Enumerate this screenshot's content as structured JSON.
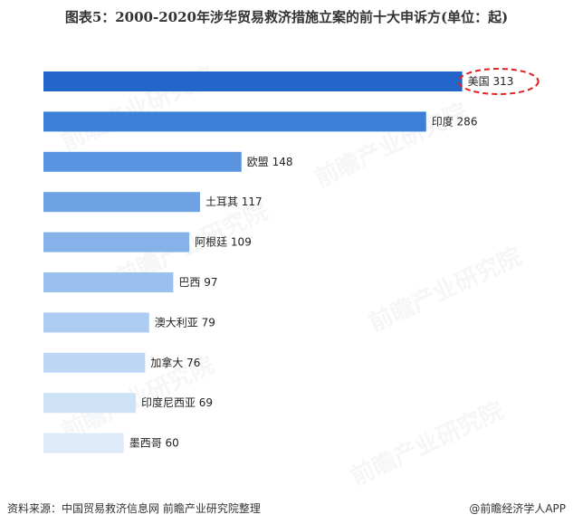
{
  "title": "图表5：2000-2020年涉华贸易救济措施立案的前十大申诉方(单位：起)",
  "chart_data": {
    "type": "bar",
    "orientation": "horizontal",
    "title": "图表5：2000-2020年涉华贸易救济措施立案的前十大申诉方(单位：起)",
    "categories": [
      "美国",
      "印度",
      "欧盟",
      "土耳其",
      "阿根廷",
      "巴西",
      "澳大利亚",
      "加拿大",
      "印度尼西亚",
      "墨西哥"
    ],
    "values": [
      313,
      286,
      148,
      117,
      109,
      97,
      79,
      76,
      69,
      60
    ],
    "xlim": [
      0,
      320
    ],
    "colors": [
      "#2166c8",
      "#3b7fd8",
      "#5a94e0",
      "#6ea2e4",
      "#86b2ea",
      "#99c0ee",
      "#acccf1",
      "#bdd7f4",
      "#cde1f7",
      "#dceaf9"
    ],
    "highlight": {
      "category": "美国",
      "color": "#e02020"
    }
  },
  "footer": {
    "source": "资料来源：中国贸易救济信息网 前瞻产业研究院整理",
    "brand": "@前瞻经济学人APP"
  },
  "watermark": "前瞻产业研究院"
}
